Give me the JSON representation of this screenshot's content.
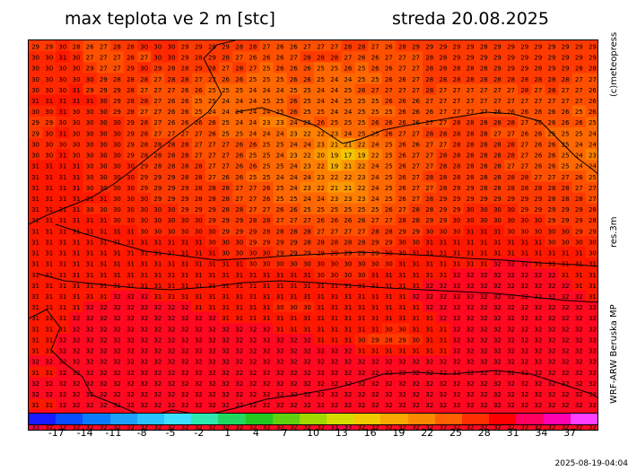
{
  "header": {
    "title": "max teplota ve 2 m [stc]",
    "date": "streda 20.08.2025"
  },
  "side_labels": {
    "copyright": "(c)meteopress",
    "resolution": "res.3m",
    "model": "WRF-ARW Beruska MP"
  },
  "footer": {
    "timestamp": "2025-08-19-04:04"
  },
  "legend": {
    "ticks": [
      "-17",
      "-14",
      "-11",
      "-8",
      "-5",
      "-2",
      "1",
      "4",
      "7",
      "10",
      "13",
      "16",
      "19",
      "22",
      "25",
      "28",
      "31",
      "34",
      "37"
    ],
    "colors": [
      "#1a1aff",
      "#0a4cff",
      "#0a7aff",
      "#1ea0ff",
      "#2cc2ff",
      "#3de0ff",
      "#2ee8b0",
      "#20d860",
      "#22c81e",
      "#60d010",
      "#a0d800",
      "#d4dc00",
      "#f2c800",
      "#f8a800",
      "#fc8800",
      "#ff6000",
      "#ff3000",
      "#ff0000",
      "#ff0060",
      "#ff00b0",
      "#ff40ff"
    ]
  },
  "map": {
    "grid_rows": [
      "29 29 30 28 26 27 28 28 30 30 30 29 29 28 29 28 28 27 26 26 27 27 27 28 28 27 26 28 29 29 29 29 29 28 29 29 29 29 29 29 29 29",
      "30 30 31 30 27 27 27 28 27 30 30 29 28 29 28 27 26 26 26 27 28 28 28 27 26 26 27 27 27 28 28 29 29 29 29 29 29 29 29 29 29 29",
      "30 30 30 30 29 27 27 29 30 29 28 28 29 28 27 28 27 25 26 26 26 25 25 26 25 26 26 27 27 28 28 28 28 28 29 29 29 28 29 29 28 28",
      "30 30 30 30 30 29 28 28 28 27 28 28 27 27 26 26 25 25 25 26 26 25 24 24 25 25 26 26 27 28 28 28 28 28 28 28 28 28 28 28 27 27",
      "30 30 30 31 29 29 29 28 27 27 27 26 26 25 25 25 24 24 24 25 25 24 24 25 26 27 27 27 27 28 27 27 27 27 27 27 28 27 28 27 27 26",
      "31 31 31 31 31 30 29 28 28 27 26 26 25 25 24 24 24 25 25 26 25 24 24 25 25 25 26 26 26 27 27 27 27 27 27 27 27 27 27 27 27 26",
      "30 30 31 30 30 30 29 28 27 27 26 26 25 24 24 24 24 24 25 26 25 25 24 24 25 25 25 26 26 26 27 27 27 27 26 26 26 26 26 26 25 26",
      "29 29 30 30 30 30 30 29 28 27 26 26 26 26 25 24 24 23 23 24 25 26 25 25 25 26 26 26 26 27 27 28 28 28 28 28 27 26 26 26 26 25",
      "29 30 31 30 30 30 30 29 28 27 27 27 27 26 25 25 24 24 24 23 22 22 23 24 25 25 26 27 27 28 28 28 28 28 27 27 26 26 25 25 25 24",
      "30 30 30 30 30 30 30 29 28 28 28 28 27 27 27 26 26 25 25 24 24 23 21 21 22 24 25 26 26 27 27 28 28 28 28 28 27 26 26 25 24 24",
      "30 30 31 30 30 30 30 29 28 28 28 28 27 27 27 26 25 25 24 23 22 20 19 17 19 22 25 26 27 27 28 28 28 28 28 28 27 26 26 25 24 23",
      "31 31 31 31 30 30 30 30 29 28 28 28 28 27 27 26 26 25 25 24 23 22 19 21 22 24 25 26 27 27 28 28 28 28 28 27 27 26 26 25 24 24",
      "31 31 31 31 30 30 30 30 29 29 29 28 28 27 26 26 25 25 24 24 24 23 22 22 23 24 25 26 27 28 28 28 28 28 28 28 28 27 27 27 26 25",
      "31 31 31 31 30 30 30 30 29 29 29 29 28 28 28 27 27 26 25 24 23 22 21 21 22 24 25 26 27 27 28 29 29 28 28 28 28 28 28 28 27 27",
      "31 31 31 31 31 31 30 30 30 29 29 29 28 28 28 27 27 26 25 25 24 24 23 23 23 24 25 26 27 28 29 29 29 29 29 29 29 29 28 28 28 27",
      "31 31 31 31 30 30 30 30 30 30 30 29 29 29 28 28 27 27 26 26 25 25 25 25 25 25 26 27 28 28 29 29 30 30 30 30 29 29 29 29 29 28",
      "31 31 31 31 31 31 30 30 30 30 30 30 30 29 29 29 28 28 27 27 27 26 26 26 26 27 27 28 28 29 29 30 30 30 30 30 30 30 29 29 29 28",
      "31 31 31 31 31 31 31 31 30 30 30 30 30 30 29 29 29 28 28 28 28 27 27 27 27 28 28 29 29 30 30 30 31 31 31 30 30 30 30 30 29 29",
      "31 31 31 31 31 31 31 31 31 31 31 31 31 30 30 30 29 29 29 29 28 28 28 28 28 29 29 30 30 31 31 31 31 31 31 31 31 31 30 30 30 30",
      "31 31 31 31 31 31 31 31 31 31 31 31 31 31 30 30 30 30 29 29 29 29 29 29 29 29 30 30 31 31 31 31 31 31 31 31 31 31 31 31 31 30",
      "31 31 31 31 31 31 31 31 31 31 31 31 31 31 31 31 30 30 30 30 30 30 30 30 30 30 30 31 31 31 31 31 31 31 32 32 32 31 31 31 31 31",
      "31 31 31 31 31 31 31 31 31 31 31 31 31 31 31 31 31 31 31 31 31 30 30 30 30 31 31 31 31 31 31 32 32 32 32 32 32 32 32 31 31 31",
      "31 31 31 31 31 31 31 31 31 31 31 31 31 31 31 31 31 31 31 31 31 31 31 31 31 31 31 31 31 32 32 32 32 32 32 32 32 32 32 32 31 31",
      "31 31 31 31 31 31 32 32 32 31 31 31 31 31 31 31 31 31 31 31 31 31 31 31 31 31 31 31 32 32 32 32 32 32 32 32 32 32 32 32 32 31",
      "31 31 31 31 32 32 32 32 32 32 32 32 31 31 31 31 31 31 30 30 30 31 31 31 31 31 31 31 31 32 32 32 32 32 32 32 32 32 32 32 32 32",
      "31 31 31 32 32 32 32 32 32 32 32 32 32 32 31 31 31 31 31 31 31 31 31 31 31 31 31 31 31 31 32 32 32 32 32 32 32 32 32 32 32 32",
      "31 31 31 32 32 32 32 32 32 32 32 32 32 32 32 32 32 32 31 31 31 31 31 31 31 31 30 30 31 31 31 32 32 32 32 32 32 32 32 32 32 32",
      "31 31 32 32 32 32 32 32 32 32 32 32 32 32 32 32 32 32 32 32 32 31 31 31 30 29 28 29 30 31 31 32 32 32 32 32 32 32 32 32 32 32",
      "31 31 32 32 32 32 32 32 32 32 32 32 32 32 32 32 32 32 32 32 32 32 32 32 31 31 31 31 31 31 31 32 32 32 32 32 32 32 32 32 32 32",
      "32 32 32 32 32 32 32 32 32 32 32 32 32 32 32 32 32 32 32 32 32 32 32 32 32 32 32 32 32 32 32 32 32 32 32 32 32 32 32 32 32 32",
      "31 31 32 32 32 32 32 32 32 32 32 32 32 32 32 32 32 32 32 32 32 32 32 32 32 32 32 32 32 32 32 32 32 32 32 32 32 32 32 32 32 32",
      "32 32 32 32 32 32 32 32 32 32 32 32 32 32 32 32 32 32 32 32 32 32 32 32 32 32 32 32 32 32 32 32 32 32 32 32 32 32 32 32 32 32",
      "32 32 32 32 32 32 32 32 32 32 32 32 32 32 32 32 32 32 32 32 32 32 32 32 32 32 32 32 32 32 32 32 32 32 32 32 32 32 32 32 32 32",
      "31 31 32 32 32 32 32 32 32 32 32 32 32 32 32 32 32 32 32 32 32 32 32 32 32 32 32 32 32 32 32 32 32 32 32 32 32 32 32 32 32 32",
      "32 32 32 32 32 32 32 32 32 32 32 32 32 32 32 32 32 32 32 32 32 33 33 32 32 32 32 32 32 32 32 32 32 32 32 32 32 32 32 32 32 32",
      "33 32 32 32 32 32 32 32 32 32 32 32 32 32 32 32 32 32 32 32 32 32 33 33 32 32 32 32 32 32 32 32 32 32 32 32 32 32 32 32 32 32"
    ]
  }
}
